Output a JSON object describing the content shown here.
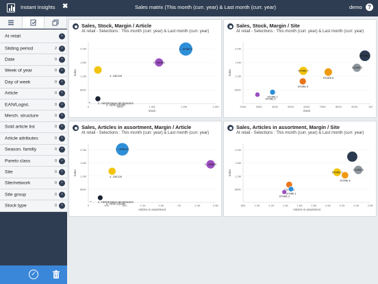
{
  "header": {
    "app_title": "Instant Insights",
    "title": "Sales matrix (This month (curr. year) & Last month (curr. year)",
    "user": "demo",
    "help": "?",
    "close": "✖"
  },
  "sidebar": {
    "filters": [
      {
        "label": "At retail",
        "count": ""
      },
      {
        "label": "Sliding period",
        "count": "2"
      },
      {
        "label": "Date",
        "count": "0"
      },
      {
        "label": "Week of year",
        "count": "0"
      },
      {
        "label": "Day of week",
        "count": "0"
      },
      {
        "label": "Article",
        "count": "0"
      },
      {
        "label": "EAN/Logist.",
        "count": "0"
      },
      {
        "label": "Merch. structure",
        "count": "0"
      },
      {
        "label": "Sold article list",
        "count": "0"
      },
      {
        "label": "Article attributes",
        "count": "0"
      },
      {
        "label": "Season. familly",
        "count": "0"
      },
      {
        "label": "Pareto class",
        "count": "0"
      },
      {
        "label": "Site",
        "count": "0"
      },
      {
        "label": "Site/network",
        "count": "0"
      },
      {
        "label": "Site group",
        "count": "0"
      },
      {
        "label": "Stock type",
        "count": "0"
      }
    ]
  },
  "panels": [
    {
      "title": "Sales, Stock, Margin / Article",
      "subtitle": "At retail - Selections : This month (curr. year) & Last month (curr. year)"
    },
    {
      "title": "Sales, Stock, Margin / Site",
      "subtitle": "At retail - Selections : This month (curr. year) & Last month (curr. year)"
    },
    {
      "title": "Sales, Articles in assortment, Margin / Article",
      "subtitle": "At retail - Selections : This month (curr. year) & Last month (curr. year)"
    },
    {
      "title": "Sales, Articles in assortment, Margin / Site",
      "subtitle": "At retail - Selections : This month (curr. year) & Last month (curr. year)"
    }
  ],
  "chart_data": [
    {
      "type": "scatter",
      "title": "Sales, Stock, Margin / Article",
      "xlabel": "Stock",
      "ylabel": "Sales",
      "xlim": [
        0,
        2000000
      ],
      "ylim": [
        600000,
        2400000
      ],
      "xticks": [
        "0",
        "500K",
        "1.0M",
        "1.5M",
        "2.0M"
      ],
      "yticks": [
        "800K",
        "1.2M",
        "1.6M",
        "2.0M"
      ],
      "points": [
        {
          "label": "1 - SPIRITS",
          "x": 1530000,
          "y": 2190000,
          "r": 0.11,
          "color": "#2e8fd8"
        },
        {
          "label": "2 - WINES",
          "x": 1110000,
          "y": 1800000,
          "r": 0.07,
          "color": "#9b4fc0"
        },
        {
          "label": "4 - DECOS",
          "x": 150000,
          "y": 1580000,
          "r": 0.065,
          "color": "#f2c40f"
        },
        {
          "label": "3 - REFRESHING BEVERAGES",
          "x": 150000,
          "y": 740000,
          "r": 0.045,
          "color": "#1b2233"
        },
        {
          "label": "5 - NON LIQUOR",
          "x": 20000,
          "y": 630000,
          "r": 0.01,
          "color": "#1b2233"
        }
      ]
    },
    {
      "type": "scatter",
      "title": "Sales, Stock, Margin / Site",
      "xlabel": "Stock",
      "ylabel": "Sales",
      "xlim": [
        200000,
        1000000
      ],
      "ylim": [
        400000,
        2400000
      ],
      "xticks": [
        "200K",
        "300K",
        "400K",
        "500K",
        "600K",
        "700K",
        "800K",
        "900K",
        "1M"
      ],
      "yticks": [
        "800K",
        "1.2M",
        "1.6M",
        "2.0M"
      ],
      "points": [
        {
          "label": "STORE 0",
          "x": 965000,
          "y": 1950000,
          "r": 0.09,
          "color": "#2b3a4f"
        },
        {
          "label": "STORE 7",
          "x": 578000,
          "y": 1460000,
          "r": 0.07,
          "color": "#f2c40f"
        },
        {
          "label": "STORE 8",
          "x": 735000,
          "y": 1420000,
          "r": 0.065,
          "color": "#f09a12"
        },
        {
          "label": "STORE 9",
          "x": 915000,
          "y": 1560000,
          "r": 0.07,
          "color": "#8e969e"
        },
        {
          "label": "STORE 5",
          "x": 575000,
          "y": 1120000,
          "r": 0.055,
          "color": "#e8751c"
        },
        {
          "label": "STORE 1",
          "x": 385000,
          "y": 770000,
          "r": 0.045,
          "color": "#2e8fd8"
        },
        {
          "label": "STORE 3",
          "x": 290000,
          "y": 690000,
          "r": 0.04,
          "color": "#9b4fc0"
        }
      ]
    },
    {
      "type": "scatter",
      "title": "Sales, Articles in assortment, Margin / Article",
      "xlabel": "Articles in assortment",
      "ylabel": "Sales",
      "xlim": [
        0,
        3000
      ],
      "ylim": [
        600000,
        2400000
      ],
      "xticks": [
        "0",
        "400",
        "800",
        "1.2K",
        "1.6K",
        "2K",
        "2.4K",
        "2.8K"
      ],
      "yticks": [
        "800K",
        "1.2M",
        "1.6M",
        "2.0M"
      ],
      "points": [
        {
          "label": "1 - SPIRITS",
          "x": 800,
          "y": 2220000,
          "r": 0.11,
          "color": "#2e8fd8"
        },
        {
          "label": "2 - WINES",
          "x": 2880,
          "y": 1760000,
          "r": 0.075,
          "color": "#9b4fc0"
        },
        {
          "label": "4 - DECOS",
          "x": 560,
          "y": 1550000,
          "r": 0.065,
          "color": "#f2c40f"
        },
        {
          "label": "3 - REFRESHING BEVERAGES",
          "x": 280,
          "y": 740000,
          "r": 0.045,
          "color": "#1b2233"
        },
        {
          "label": "5 - NON LIQUOR",
          "x": 60,
          "y": 630000,
          "r": 0.01,
          "color": "#1b2233"
        }
      ]
    },
    {
      "type": "scatter",
      "title": "Sales, Articles in assortment, Margin / Site",
      "xlabel": "Articles in assortment",
      "ylabel": "Sales",
      "xlim": [
        600,
        2700
      ],
      "ylim": [
        400000,
        2400000
      ],
      "xticks": [
        "800",
        "1.0K",
        "1.2K",
        "1.4K",
        "1.6K",
        "1.8K",
        "2.0K",
        "2.2K",
        "2.4K",
        "2.6K"
      ],
      "yticks": [
        "800K",
        "1.2M",
        "1.6M",
        "2.0M"
      ],
      "points": [
        {
          "label": "",
          "x": 2400,
          "y": 1950000,
          "r": 0.09,
          "color": "#2b3a4f"
        },
        {
          "label": "STORE 9",
          "x": 2500,
          "y": 1500000,
          "r": 0.075,
          "color": "#8e969e"
        },
        {
          "label": "STORE 7",
          "x": 2150,
          "y": 1420000,
          "r": 0.07,
          "color": "#f2c40f"
        },
        {
          "label": "STORE 8",
          "x": 2280,
          "y": 1320000,
          "r": 0.06,
          "color": "#f09a12"
        },
        {
          "label": "STORE 5",
          "x": 1360,
          "y": 1000000,
          "r": 0.055,
          "color": "#e8751c"
        },
        {
          "label": "STORE 1",
          "x": 1390,
          "y": 850000,
          "r": 0.045,
          "color": "#2e8fd8"
        },
        {
          "label": "STORE 3",
          "x": 1280,
          "y": 750000,
          "r": 0.04,
          "color": "#9b4fc0"
        }
      ]
    }
  ]
}
